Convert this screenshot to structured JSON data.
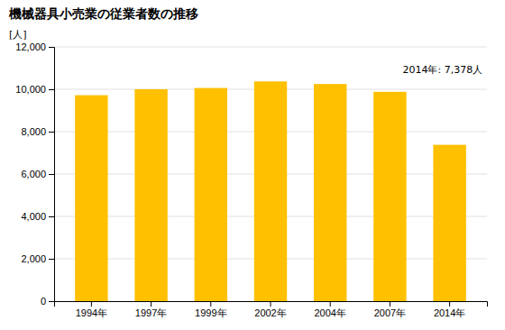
{
  "chart_data": {
    "type": "bar",
    "title": "機械器具小売業の従業者数の推移",
    "ylabel": "[人]",
    "annotation": "2014年: 7,378人",
    "categories": [
      "1994年",
      "1997年",
      "1999年",
      "2002年",
      "2004年",
      "2007年",
      "2014年"
    ],
    "values": [
      9720,
      10000,
      10060,
      10370,
      10250,
      9880,
      7378
    ],
    "color": "#FFC000",
    "ylim": [
      0,
      12000
    ],
    "yticks": [
      0,
      {
        "value": 2000,
        "label": "2,000"
      },
      {
        "value": 4000,
        "label": "4,000"
      },
      {
        "value": 6000,
        "label": "6,000"
      },
      {
        "value": 8000,
        "label": "8,000"
      },
      {
        "value": 10000,
        "label": "10,000"
      },
      {
        "value": 12000,
        "label": "12,000"
      }
    ],
    "grid": true
  }
}
